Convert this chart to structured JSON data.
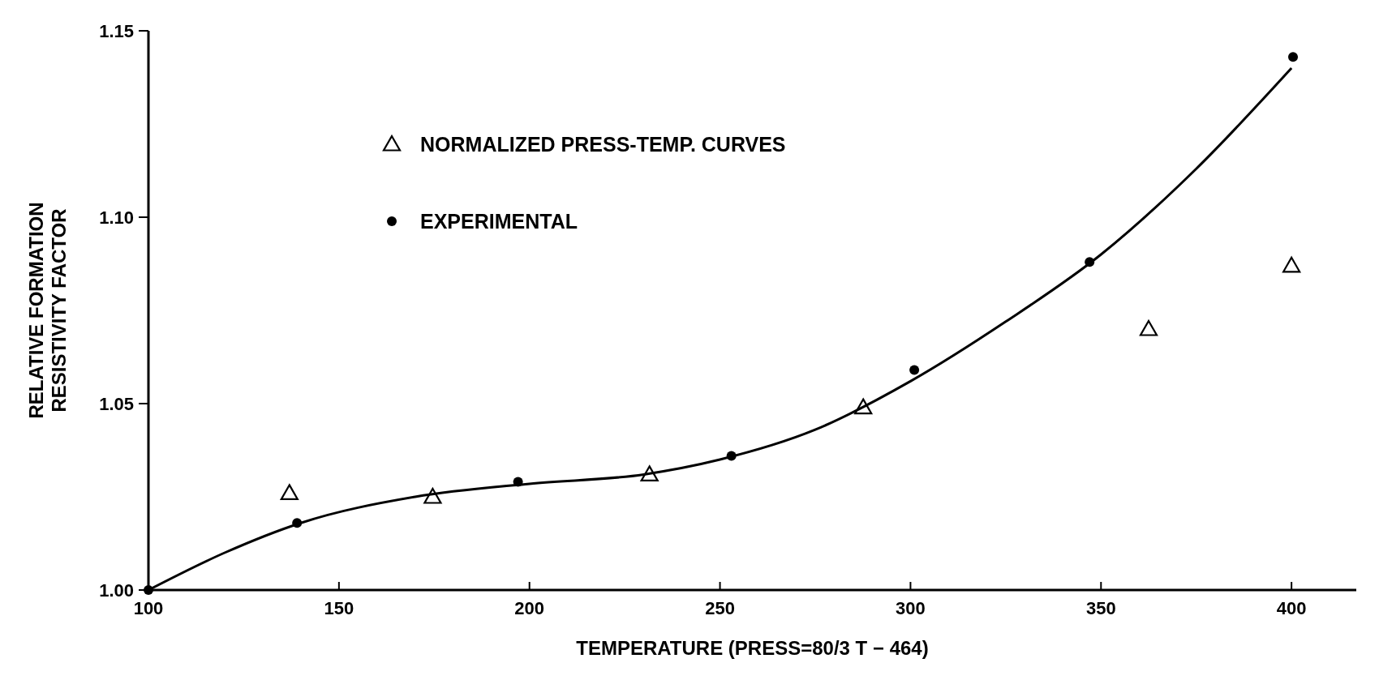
{
  "chart_data": {
    "type": "scatter",
    "xlabel": "TEMPERATURE (PRESS=80/3 T − 464)",
    "ylabel": "RELATIVE FORMATION\nRESISTIVITY FACTOR",
    "xlim": [
      100,
      417
    ],
    "xticks": [
      100,
      150,
      200,
      250,
      300,
      350,
      400
    ],
    "ylim": [
      1.0,
      1.15
    ],
    "yticks": [
      {
        "value": 1.0,
        "label": "1.00"
      },
      {
        "value": 1.05,
        "label": "1.05"
      },
      {
        "value": 1.1,
        "label": "1.10"
      },
      {
        "value": 1.15,
        "label": "1.15"
      }
    ],
    "grid": false,
    "legend": "top left",
    "series": [
      {
        "name": "NORMALIZED PRESS-TEMP. CURVES",
        "marker": "triangle",
        "color": "#000000",
        "x": [
          137,
          174.6,
          231.5,
          287.6,
          362.5,
          400
        ],
        "values": [
          1.026,
          1.025,
          1.031,
          1.049,
          1.07,
          1.087
        ]
      },
      {
        "name": "EXPERIMENTAL",
        "marker": "circle",
        "color": "#000000",
        "x": [
          100,
          139,
          197,
          253,
          301,
          347,
          400.4
        ],
        "values": [
          1.0,
          1.018,
          1.029,
          1.036,
          1.059,
          1.088,
          1.143
        ]
      },
      {
        "type": "line",
        "marker": "none",
        "line_style": "solid",
        "color": "#000000",
        "x": [
          100,
          120,
          140,
          170,
          200,
          230,
          250,
          275,
          300,
          325,
          350,
          375,
          400
        ],
        "values": [
          1.0,
          1.01,
          1.018,
          1.025,
          1.0285,
          1.031,
          1.035,
          1.043,
          1.056,
          1.072,
          1.09,
          1.113,
          1.14
        ]
      }
    ]
  }
}
